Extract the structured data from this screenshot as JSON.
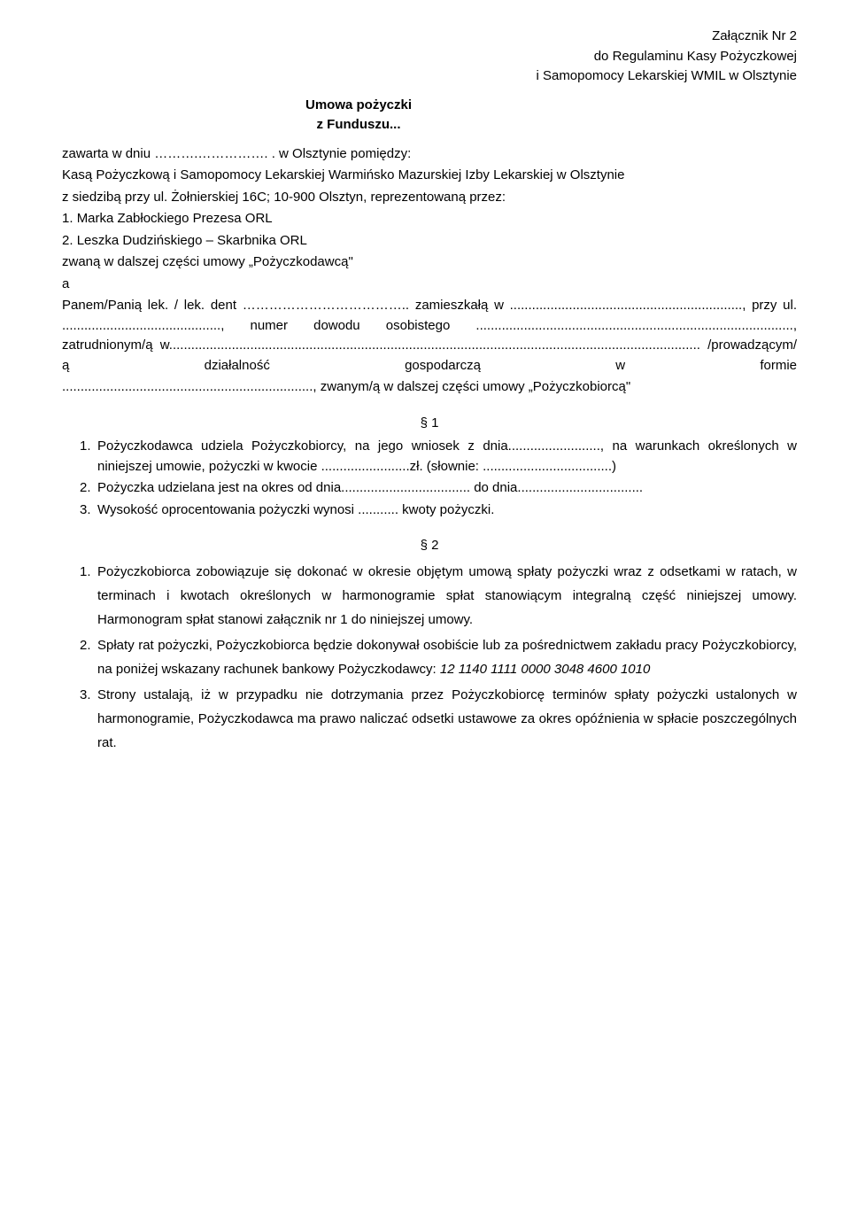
{
  "header": {
    "line1": "Załącznik Nr 2",
    "line2": "do Regulaminu Kasy Pożyczkowej",
    "line3": "i Samopomocy Lekarskiej WMIL w Olsztynie"
  },
  "title": {
    "line1": "Umowa pożyczki",
    "line2": "z Funduszu..."
  },
  "intro": {
    "l1": "zawarta w dniu ……….……………. . w Olsztynie pomiędzy:",
    "l2": "Kasą Pożyczkową i Samopomocy Lekarskiej Warmińsko Mazurskiej Izby Lekarskiej w Olsztynie",
    "l3": "z siedzibą przy ul. Żołnierskiej 16C; 10-900 Olsztyn, reprezentowaną przez:",
    "item1": "Marka Zabłockiego  Prezesa ORL",
    "item2": "Leszka Dudzińskiego – Skarbnika ORL",
    "l4": "zwaną w dalszej części umowy „Pożyczkodawcą\"",
    "l5": "a",
    "l6": "Panem/Panią lek. / lek. dent ……………………………….. zamieszkałą w ..............................................................., przy ul. ..........................................., numer dowodu  osobistego ......................................................................................,  zatrudnionym/ą w................................................................................................................................................ /prowadzącym/ą działalność gospodarczą w formie",
    "l7": "...................................................................., zwanym/ą w dalszej części umowy „Pożyczkobiorcą\""
  },
  "s1": {
    "heading": "§ 1",
    "item1": "Pożyczkodawca udziela Pożyczkobiorcy, na jego wniosek z dnia........................., na warunkach określonych w niniejszej umowie, pożyczki w kwocie ........................zł. (słownie: ...................................)",
    "item2": "Pożyczka udzielana jest na okres od dnia................................... do dnia..................................",
    "item3": "Wysokość oprocentowania pożyczki wynosi ........... kwoty pożyczki."
  },
  "s2": {
    "heading": "§ 2",
    "item1": "Pożyczkobiorca zobowiązuje się dokonać w okresie objętym umową spłaty pożyczki wraz z odsetkami w ratach, w terminach i kwotach określonych w harmonogramie spłat stanowiącym integralną część niniejszej umowy. Harmonogram spłat stanowi załącznik nr 1 do niniejszej umowy.",
    "item2_pre": "Spłaty rat pożyczki, Pożyczkobiorca będzie dokonywał osobiście lub za pośrednictwem zakładu pracy Pożyczkobiorcy, na poniżej wskazany rachunek bankowy Pożyczkodawcy: ",
    "item2_acct": "12 1140 1111 0000 3048 4600 1010",
    "item3": "Strony ustalają, iż w przypadku nie dotrzymania przez Pożyczkobiorcę terminów spłaty pożyczki ustalonych w harmonogramie, Pożyczkodawca ma prawo naliczać odsetki ustawowe za okres opóźnienia w spłacie poszczególnych rat."
  }
}
